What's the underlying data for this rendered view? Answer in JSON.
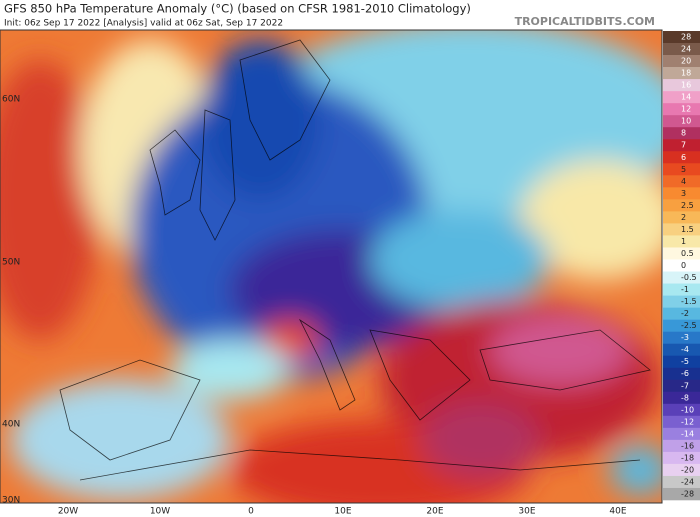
{
  "header": {
    "title": "GFS 850 hPa Temperature Anomaly (°C) (based on CFSR 1981-2010 Climatology)",
    "subtitle": "Init: 06z Sep 17 2022   [Analysis]   valid at 06z Sat, Sep 17 2022",
    "watermark": "TROPICALTIDBITS.COM"
  },
  "map": {
    "lat_labels": [
      "60N",
      "50N",
      "40N",
      "30N"
    ],
    "lon_labels": [
      "20W",
      "10W",
      "0",
      "10E",
      "20E",
      "30E",
      "40E"
    ]
  },
  "colorbar": [
    {
      "value": 28,
      "color": "#5a3a2a"
    },
    {
      "value": 24,
      "color": "#7a5a4a"
    },
    {
      "value": 20,
      "color": "#a08070"
    },
    {
      "value": 18,
      "color": "#c0a898"
    },
    {
      "value": 16,
      "color": "#e8c8dc"
    },
    {
      "value": 14,
      "color": "#f0a0c8"
    },
    {
      "value": 12,
      "color": "#e878b0"
    },
    {
      "value": 10,
      "color": "#d05890"
    },
    {
      "value": 8,
      "color": "#b03060"
    },
    {
      "value": 7,
      "color": "#c02030"
    },
    {
      "value": 6,
      "color": "#d83020"
    },
    {
      "value": 5,
      "color": "#e84a20"
    },
    {
      "value": 4,
      "color": "#f06a28"
    },
    {
      "value": 3,
      "color": "#f88a30"
    },
    {
      "value": 2.5,
      "color": "#f8a040"
    },
    {
      "value": 2,
      "color": "#f8b858"
    },
    {
      "value": 1.5,
      "color": "#f8d080"
    },
    {
      "value": 1,
      "color": "#f8e8a8"
    },
    {
      "value": 0.5,
      "color": "#fff8e0"
    },
    {
      "value": 0,
      "color": "#ffffff"
    },
    {
      "value": -0.5,
      "color": "#d8f4f8"
    },
    {
      "value": -1,
      "color": "#a8e8f0"
    },
    {
      "value": -1.5,
      "color": "#80d0e8"
    },
    {
      "value": -2,
      "color": "#58b8e0"
    },
    {
      "value": -2.5,
      "color": "#3898d8"
    },
    {
      "value": -3,
      "color": "#2878c8"
    },
    {
      "value": -4,
      "color": "#1858b0"
    },
    {
      "value": -5,
      "color": "#1040a0"
    },
    {
      "value": -6,
      "color": "#183090"
    },
    {
      "value": -7,
      "color": "#282888"
    },
    {
      "value": -8,
      "color": "#3a2898"
    },
    {
      "value": -10,
      "color": "#5a40b8"
    },
    {
      "value": -12,
      "color": "#7a60d0"
    },
    {
      "value": -14,
      "color": "#9a80e0"
    },
    {
      "value": -16,
      "color": "#c0a0e8"
    },
    {
      "value": -18,
      "color": "#d8b8f0"
    },
    {
      "value": -20,
      "color": "#e8d0f0"
    },
    {
      "value": -24,
      "color": "#c8c8c8"
    },
    {
      "value": -28,
      "color": "#a8a8a8"
    }
  ]
}
